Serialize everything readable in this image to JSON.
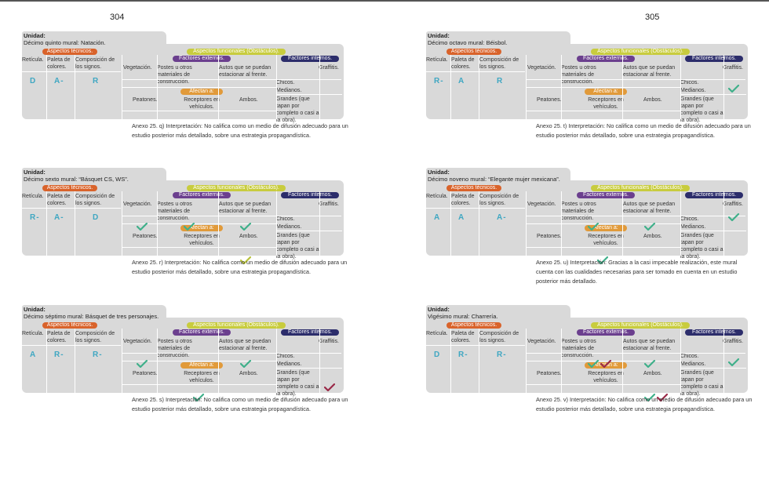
{
  "page_numbers": {
    "left": "304",
    "right": "305"
  },
  "colors": {
    "green_check": "#3fb08a",
    "red_check": "#9a2a48",
    "olive_check": "#b8c23a",
    "letters": "#3fa7c2"
  },
  "headers": {
    "unidad": "Unidad:",
    "aspectos_tecnicos": "Aspectos técnicos.",
    "aspectos_funcionales": "Aspectos funcionales (Obstáculos).",
    "factores_externos": "Factores externos.",
    "factores_internos": "Factores internos.",
    "afectan": "Afectan a:",
    "reticula": "Retícula.",
    "paleta": "Paleta de colores.",
    "composicion": "Composición de los signos.",
    "vegetacion": "Vegetación.",
    "postes": "Postes u otros materiales de construcción.",
    "autos": "Autos que se puedan estacionar al frente.",
    "graffitis": "Graffitis.",
    "chicos": "Chicos.",
    "medianos": "Medianos.",
    "grandes": "Grandes (que tapan por completo o casi a la obra).",
    "peatones": "Peatones.",
    "receptores": "Receptores en vehículos.",
    "ambos": "Ambos."
  },
  "cards": [
    {
      "title": "Décimo quinto mural: Natación.",
      "reticula": "D",
      "paleta": "A-",
      "composicion": "R",
      "caption": "Anexo 25. q) Interpretación: No califica como un medio de difusión adecuado para un estudio posterior más detallado, sobre una estrategia propagandística.",
      "checks": []
    },
    {
      "title": "Décimo sexto mural: “Básquet CS, WS”.",
      "reticula": "R-",
      "paleta": "A-",
      "composicion": "D",
      "caption": "Anexo 25. r) Interpretación: No califica como un medio de difusión adecuado para un estudio posterior más detallado, sobre una estrategia propagandística.",
      "checks": [
        "vegetacion:green",
        "postes:green",
        "autos:green",
        "ambos:olive"
      ]
    },
    {
      "title": "Décimo séptimo mural: Básquet de tres personajes.",
      "reticula": "A",
      "paleta": "R-",
      "composicion": "R-",
      "caption": "Anexo 25. s) Interpretación: No califica como un medio de difusión adecuado para un estudio posterior más detallado, sobre una estrategia propagandística.",
      "checks": [
        "vegetacion:green",
        "autos:green",
        "receptores:green",
        "graffitis_grandes:red"
      ]
    },
    {
      "title": "Décimo octavo mural: Béisbol.",
      "reticula": "R-",
      "paleta": "A",
      "composicion": "R",
      "caption": "Anexo 25. t) Interpretación: No califica como un medio de difusión adecuado para un estudio posterior más detallado, sobre una estrategia propagandística.",
      "checks": [
        "graffitis_medianos:green"
      ]
    },
    {
      "title": "Décimo noveno mural: “Elegante mujer mexicana”.",
      "reticula": "A",
      "paleta": "A",
      "composicion": "A-",
      "caption": "Anexo 25. u) Interpretación: Gracias a la casi impecable realización, este mural cuenta con las cualidades necesarias para ser tomado en cuenta en un estudio posterior más detallado.",
      "checks": [
        "postes:green",
        "autos:green",
        "graffitis_chicos:green",
        "receptores:green"
      ]
    },
    {
      "title": "Vigésimo mural: Charrería.",
      "reticula": "D",
      "paleta": "R-",
      "composicion": "R-",
      "caption": "Anexo 25. v) Interpretación: No califica como un medio de difusión adecuado para un estudio posterior más detallado, sobre una estrategia propagandística.",
      "checks": [
        "postes:green",
        "postes2:red",
        "autos:green",
        "graffitis_medianos:green",
        "ambos:green",
        "ambos2:red"
      ]
    }
  ]
}
